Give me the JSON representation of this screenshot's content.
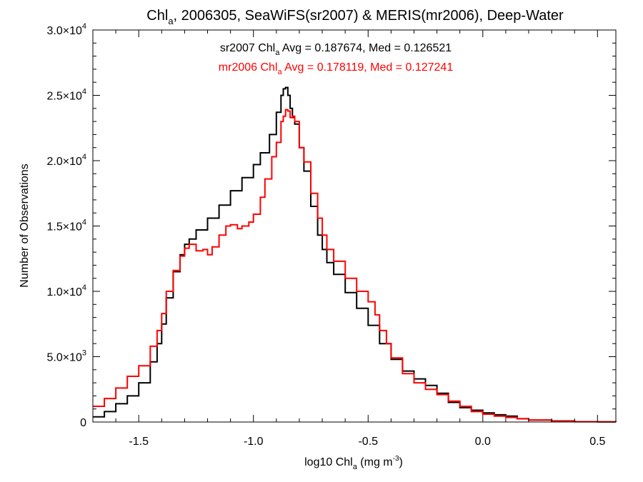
{
  "chart_data": {
    "type": "line",
    "title": {
      "prefix": "Chl",
      "sub": "a",
      "rest": ", 2006305, SeaWiFS(sr2007) & MERIS(mr2006), Deep-Water"
    },
    "xlabel": {
      "prefix": "log10 Chl",
      "sub": "a",
      "mid": " (mg m",
      "sup": "-3",
      "suffix": ")"
    },
    "ylabel": "Number of Observations",
    "xlim": [
      -1.7,
      0.58
    ],
    "ylim": [
      0,
      30000
    ],
    "x_ticks": [
      {
        "value": -1.5,
        "label": "-1.5"
      },
      {
        "value": -1.0,
        "label": "-1.0"
      },
      {
        "value": -0.5,
        "label": "-0.5"
      },
      {
        "value": 0.0,
        "label": "0.0"
      },
      {
        "value": 0.5,
        "label": "0.5"
      }
    ],
    "y_ticks": [
      {
        "value": 0,
        "mant": "0",
        "exp": ""
      },
      {
        "value": 5000,
        "mant": "5.0×10",
        "exp": "3"
      },
      {
        "value": 10000,
        "mant": "1.0×10",
        "exp": "4"
      },
      {
        "value": 15000,
        "mant": "1.5×10",
        "exp": "4"
      },
      {
        "value": 20000,
        "mant": "2.0×10",
        "exp": "4"
      },
      {
        "value": 25000,
        "mant": "2.5×10",
        "exp": "4"
      },
      {
        "value": 30000,
        "mant": "3.0×10",
        "exp": "4"
      }
    ],
    "annotations": [
      {
        "prefix": "sr2007 Chl",
        "sub": "a",
        "rest": " Avg = 0.187674, Med = 0.126521",
        "color": "#000000"
      },
      {
        "prefix": "mr2006 Chl",
        "sub": "a",
        "rest": " Avg = 0.178119, Med = 0.127241",
        "color": "#ff0000"
      }
    ],
    "series": [
      {
        "color": "#000000",
        "x": [
          -1.7,
          -1.65,
          -1.6,
          -1.55,
          -1.5,
          -1.45,
          -1.42,
          -1.4,
          -1.38,
          -1.35,
          -1.32,
          -1.3,
          -1.28,
          -1.25,
          -1.2,
          -1.15,
          -1.1,
          -1.05,
          -1.0,
          -0.97,
          -0.93,
          -0.9,
          -0.88,
          -0.87,
          -0.86,
          -0.85,
          -0.84,
          -0.83,
          -0.82,
          -0.8,
          -0.78,
          -0.75,
          -0.72,
          -0.7,
          -0.68,
          -0.65,
          -0.6,
          -0.55,
          -0.5,
          -0.45,
          -0.4,
          -0.35,
          -0.3,
          -0.25,
          -0.2,
          -0.15,
          -0.1,
          -0.05,
          0.0,
          0.05,
          0.1,
          0.15,
          0.2,
          0.3,
          0.4,
          0.5,
          0.58
        ],
        "y": [
          400,
          800,
          1400,
          2000,
          3000,
          4600,
          6000,
          7500,
          9500,
          11500,
          12800,
          13600,
          14000,
          14700,
          15600,
          16600,
          17700,
          18700,
          19700,
          20600,
          22000,
          23700,
          25000,
          25500,
          25600,
          25000,
          24000,
          23300,
          22800,
          21000,
          19200,
          16500,
          14300,
          13200,
          12200,
          11300,
          9900,
          8700,
          7400,
          6000,
          4800,
          3900,
          3300,
          2800,
          2200,
          1500,
          1100,
          900,
          700,
          550,
          450,
          250,
          150,
          80,
          30,
          10,
          5
        ]
      },
      {
        "color": "#ff0000",
        "x": [
          -1.7,
          -1.65,
          -1.6,
          -1.55,
          -1.5,
          -1.45,
          -1.42,
          -1.4,
          -1.38,
          -1.35,
          -1.32,
          -1.3,
          -1.28,
          -1.25,
          -1.22,
          -1.2,
          -1.18,
          -1.15,
          -1.12,
          -1.1,
          -1.07,
          -1.05,
          -1.02,
          -1.0,
          -0.97,
          -0.95,
          -0.92,
          -0.9,
          -0.88,
          -0.87,
          -0.86,
          -0.85,
          -0.84,
          -0.83,
          -0.82,
          -0.8,
          -0.78,
          -0.75,
          -0.72,
          -0.7,
          -0.68,
          -0.65,
          -0.6,
          -0.55,
          -0.5,
          -0.47,
          -0.45,
          -0.42,
          -0.4,
          -0.35,
          -0.3,
          -0.25,
          -0.2,
          -0.15,
          -0.1,
          -0.05,
          0.0,
          0.05,
          0.1,
          0.15,
          0.2,
          0.3,
          0.4,
          0.5,
          0.58
        ],
        "y": [
          1200,
          1800,
          2600,
          3500,
          4300,
          5800,
          7000,
          8300,
          10000,
          11600,
          12700,
          13300,
          13600,
          13100,
          13200,
          12800,
          13400,
          14300,
          15000,
          15100,
          14800,
          15000,
          15300,
          15900,
          17200,
          18600,
          20300,
          21400,
          23000,
          23400,
          23900,
          23800,
          23300,
          23400,
          23000,
          21000,
          19900,
          17500,
          15600,
          14300,
          13200,
          12300,
          11000,
          10000,
          9200,
          8200,
          7000,
          6000,
          4900,
          3700,
          3000,
          2500,
          2100,
          1600,
          1200,
          800,
          600,
          450,
          350,
          250,
          150,
          60,
          20,
          10,
          5
        ]
      }
    ]
  }
}
